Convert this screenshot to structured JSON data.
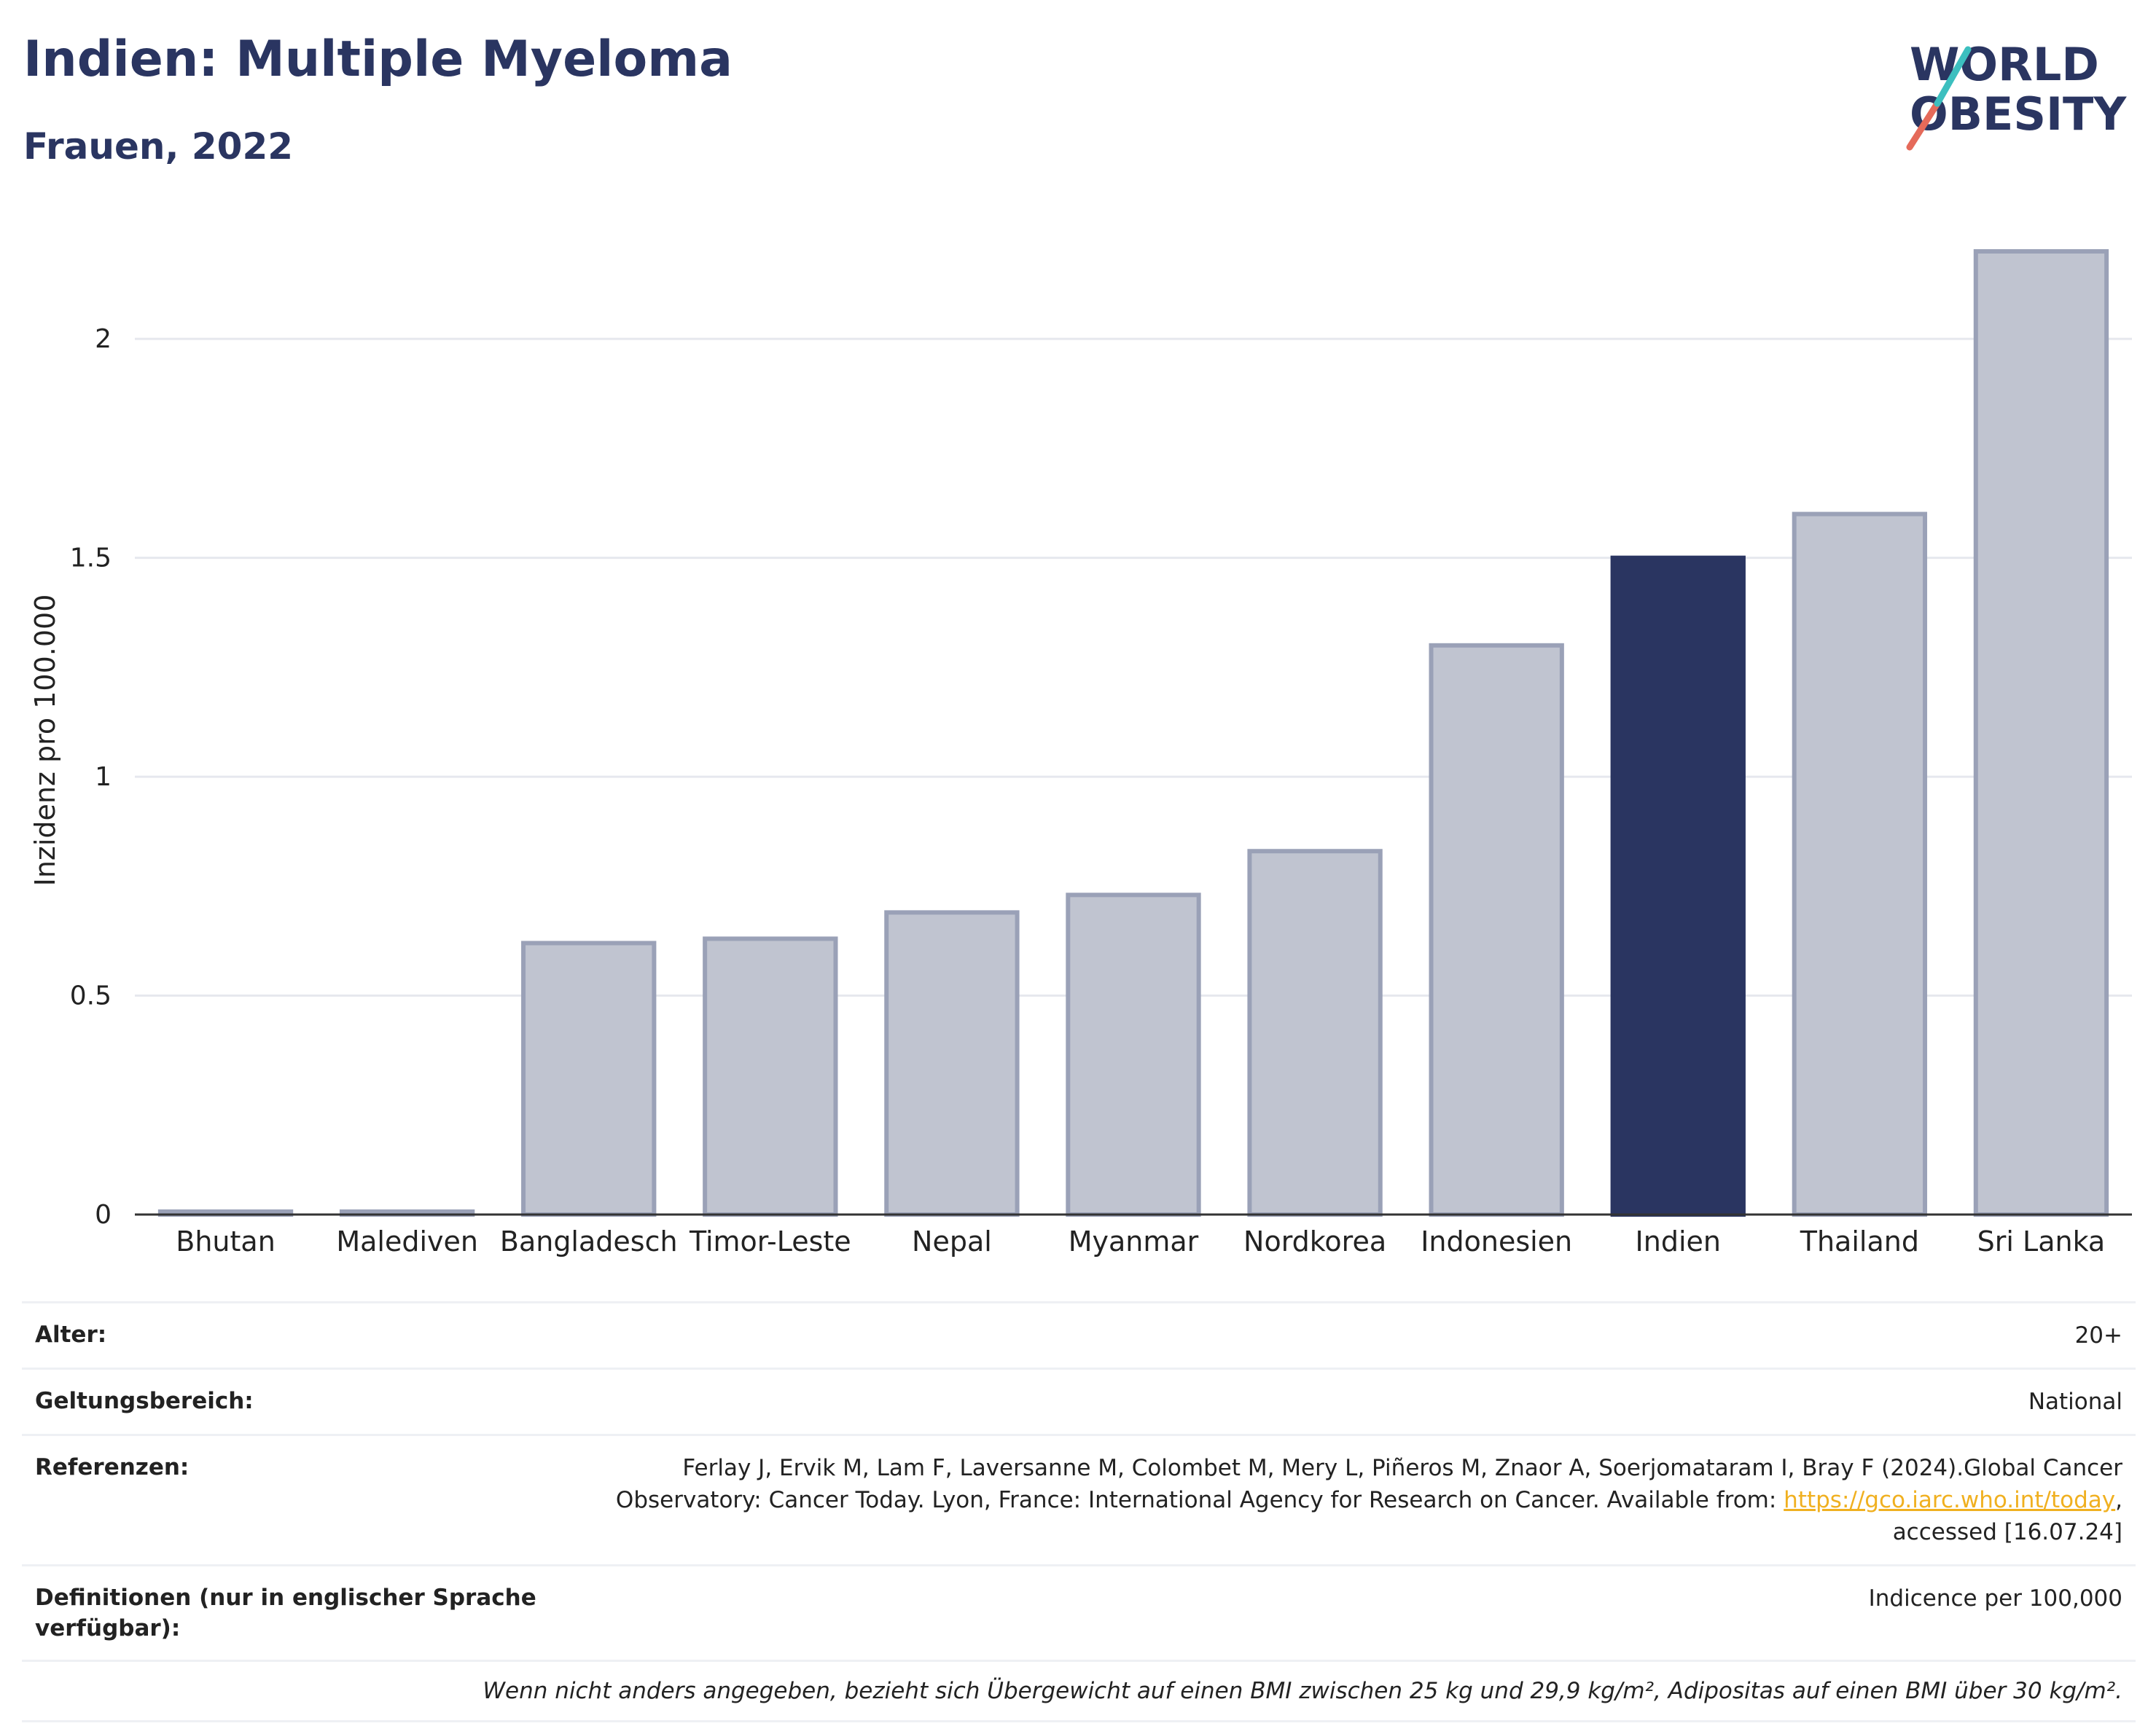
{
  "header": {
    "title": "Indien: Multiple Myeloma",
    "subtitle": "Frauen, 2022"
  },
  "logo": {
    "line1": "WORLD",
    "line2": "OBESITY"
  },
  "chart_data": {
    "type": "bar",
    "categories": [
      "Bhutan",
      "Malediven",
      "Bangladesch",
      "Timor-Leste",
      "Nepal",
      "Myanmar",
      "Nordkorea",
      "Indonesien",
      "Indien",
      "Thailand",
      "Sri Lanka"
    ],
    "values": [
      0.0,
      0.0,
      0.62,
      0.63,
      0.69,
      0.73,
      0.83,
      1.3,
      1.5,
      1.6,
      2.2
    ],
    "highlight": "Indien",
    "ylabel": "Inzidenz pro 100.000",
    "ylim": [
      0,
      2.2
    ],
    "yticks": [
      0,
      0.5,
      1,
      1.5,
      2
    ],
    "ytick_labels": [
      "0",
      "0.5",
      "1",
      "1.5",
      "2"
    ],
    "colors": {
      "bar": "#c0c4d0",
      "bar_border": "#9aa1b7",
      "highlight": "#2a3561",
      "grid": "#e6e8ee"
    }
  },
  "meta": {
    "rows": [
      {
        "label": "Alter:",
        "value": "20+"
      },
      {
        "label": "Geltungsbereich:",
        "value": "National"
      }
    ],
    "ref_label": "Referenzen:",
    "ref_line1": "Ferlay J, Ervik M, Lam F, Laversanne M, Colombet M, Mery L, Piñeros M, Znaor A, Soerjomataram I, Bray F (2024).Global Cancer",
    "ref_line2": "Observatory: Cancer Today. Lyon, France: International Agency for Research on Cancer. Available from:",
    "ref_link": "https://gco.iarc.who.int/today",
    "ref_line3": "accessed [16.07.24]",
    "def_label": "Definitionen (nur in englischer Sprache verfügbar):",
    "def_value": "Indicence per 100,000",
    "note": "Wenn nicht anders angegeben, bezieht sich Übergewicht auf einen BMI zwischen 25 kg und 29,9 kg/m², Adipositas auf einen BMI über 30 kg/m²."
  }
}
